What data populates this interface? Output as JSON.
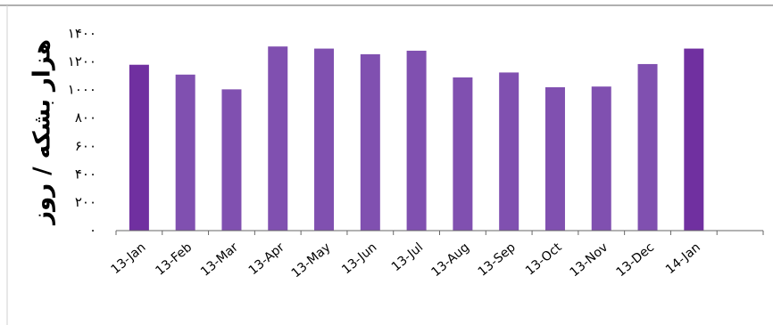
{
  "chart_data": {
    "type": "bar",
    "title": "",
    "xlabel": "",
    "ylabel": "هزار بشکه / روز",
    "categories": [
      "13-Jan",
      "13-Feb",
      "13-Mar",
      "13-Apr",
      "13-May",
      "13-Jun",
      "13-Jul",
      "13-Aug",
      "13-Sep",
      "13-Oct",
      "13-Nov",
      "13-Dec",
      "14-Jan"
    ],
    "values": [
      1180,
      1110,
      1005,
      1310,
      1295,
      1255,
      1280,
      1090,
      1125,
      1020,
      1025,
      1185,
      1295
    ],
    "ylim": [
      0,
      1400
    ],
    "yticks": [
      "۰",
      "۲۰۰",
      "۴۰۰",
      "۶۰۰",
      "۸۰۰",
      "۱۰۰۰",
      "۱۲۰۰",
      "۱۴۰۰"
    ],
    "grid": false,
    "legend": "none",
    "colors": {
      "bar": "#8050b0",
      "bar_dark": "#7030a0",
      "axis": "#666666",
      "text": "#000000"
    }
  }
}
